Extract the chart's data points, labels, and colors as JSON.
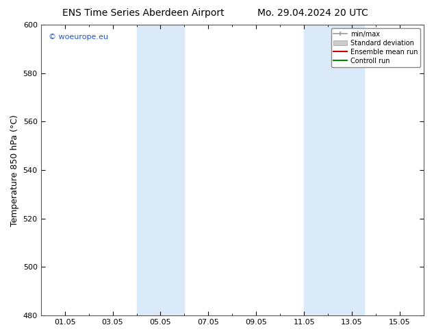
{
  "title1": "ENS Time Series Aberdeen Airport",
  "title2": "Mo. 29.04.2024 20 UTC",
  "ylabel": "Temperature 850 hPa (°C)",
  "ylim": [
    480,
    600
  ],
  "yticks": [
    480,
    500,
    520,
    540,
    560,
    580,
    600
  ],
  "x_labels": [
    "01.05",
    "03.05",
    "05.05",
    "07.05",
    "09.05",
    "11.05",
    "13.05",
    "15.05"
  ],
  "x_positions": [
    1,
    3,
    5,
    7,
    9,
    11,
    13,
    15
  ],
  "xlim": [
    0,
    16
  ],
  "shade_bands": [
    {
      "xmin": 4.0,
      "xmax": 6.0
    },
    {
      "xmin": 11.0,
      "xmax": 13.5
    }
  ],
  "shade_color": "#daeaf8",
  "watermark": "© woeurope.eu",
  "watermark_color": "#2255cc",
  "legend_labels": [
    "min/max",
    "Standard deviation",
    "Ensemble mean run",
    "Controll run"
  ],
  "legend_colors": [
    "#aaaaaa",
    "#cccccc",
    "#cc0000",
    "#008800"
  ],
  "bg_color": "#ffffff",
  "title_fontsize": 10,
  "tick_fontsize": 8,
  "label_fontsize": 9
}
